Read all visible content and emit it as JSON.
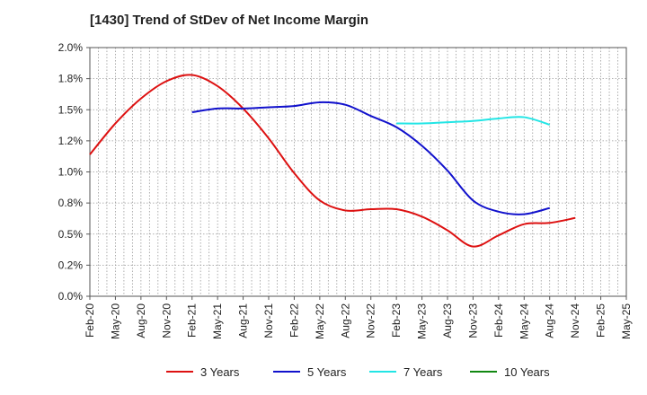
{
  "chart_data": {
    "type": "line",
    "title": "[1430]  Trend of StDev of Net Income Margin",
    "xlabel": "",
    "ylabel": "",
    "x": [
      "Feb-20",
      "May-20",
      "Aug-20",
      "Nov-20",
      "Feb-21",
      "May-21",
      "Aug-21",
      "Nov-21",
      "Feb-22",
      "May-22",
      "Aug-22",
      "Nov-22",
      "Feb-23",
      "May-23",
      "Aug-23",
      "Nov-23",
      "Feb-24",
      "May-24",
      "Aug-24",
      "Nov-24",
      "Feb-25",
      "May-25"
    ],
    "ylim": [
      0,
      2.0
    ],
    "yticks": [
      0,
      0.25,
      0.5,
      0.75,
      1.0,
      1.25,
      1.5,
      1.75,
      2.0
    ],
    "ytick_labels": [
      "0.0%",
      "0.2%",
      "0.5%",
      "0.8%",
      "1.0%",
      "1.2%",
      "1.5%",
      "1.8%",
      "2.0%"
    ],
    "grid": true,
    "legend_position": "bottom",
    "series": [
      {
        "name": "3 Years",
        "color": "#dd1111",
        "values": [
          1.14,
          1.39,
          1.59,
          1.73,
          1.78,
          1.69,
          1.51,
          1.27,
          0.99,
          0.77,
          0.69,
          0.7,
          0.7,
          0.64,
          0.53,
          0.4,
          0.49,
          0.58,
          0.59,
          0.63,
          null,
          null
        ]
      },
      {
        "name": "5 Years",
        "color": "#1111cc",
        "values": [
          null,
          null,
          null,
          null,
          1.48,
          1.51,
          1.51,
          1.52,
          1.53,
          1.56,
          1.54,
          1.45,
          1.36,
          1.21,
          1.01,
          0.77,
          0.68,
          0.66,
          0.71,
          null,
          null,
          null
        ]
      },
      {
        "name": "7 Years",
        "color": "#22e5e5",
        "values": [
          null,
          null,
          null,
          null,
          null,
          null,
          null,
          null,
          null,
          null,
          null,
          null,
          1.39,
          1.39,
          1.4,
          1.41,
          1.43,
          1.44,
          1.38,
          null,
          null,
          null
        ]
      },
      {
        "name": "10 Years",
        "color": "#118811",
        "values": [
          null,
          null,
          null,
          null,
          null,
          null,
          null,
          null,
          null,
          null,
          null,
          null,
          null,
          null,
          null,
          null,
          null,
          null,
          null,
          null,
          null,
          null
        ]
      }
    ]
  }
}
